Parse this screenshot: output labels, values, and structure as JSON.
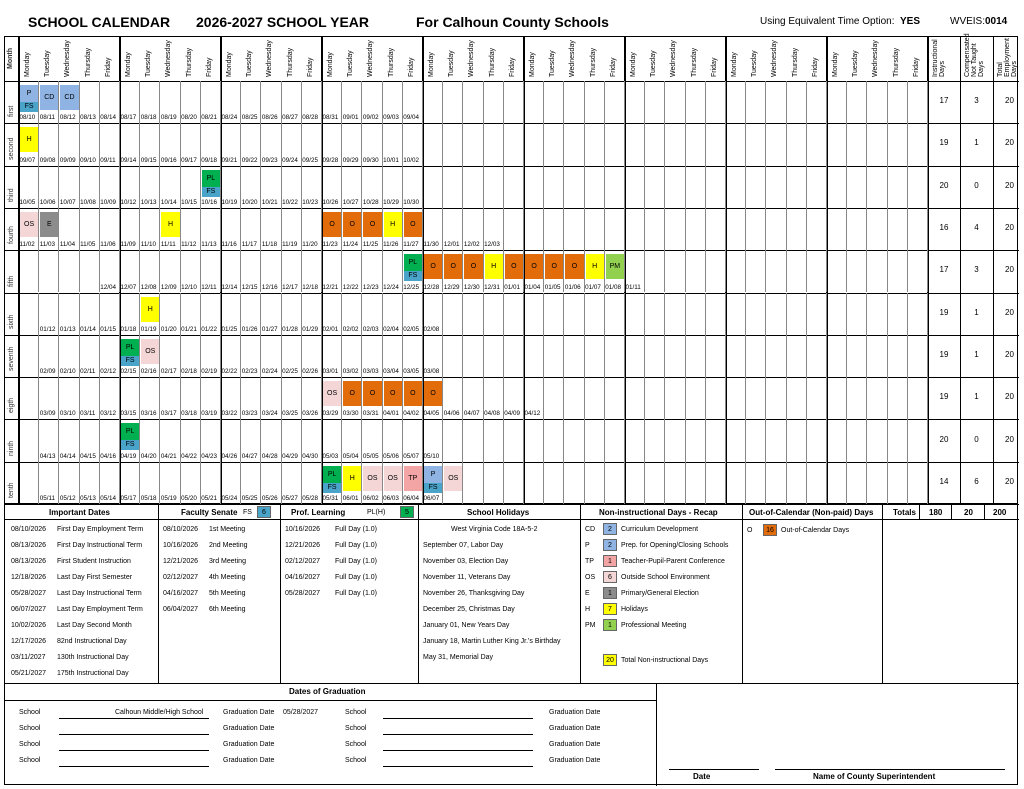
{
  "header": {
    "title": "SCHOOL CALENDAR",
    "year": "2026-2027 SCHOOL YEAR",
    "county": "For Calhoun County Schools",
    "option_label": "Using Equivalent Time Option:",
    "option_value": "YES",
    "wveis_label": "WVEIS:",
    "wveis_value": "0014"
  },
  "colors": {
    "CD": "#8fb4e3",
    "P": "#8fb4e3",
    "FS": "#4aa3c9",
    "TP": "#f3a4a4",
    "OS": "#f5d6d6",
    "E": "#8c8c8c",
    "H": "#ffff00",
    "PM": "#92d050",
    "PL": "#00b050",
    "O": "#e36c0a"
  },
  "grid": {
    "month_label": "Month",
    "days": [
      "Monday",
      "Tuesday",
      "Wednesday",
      "Thursday",
      "Friday"
    ],
    "weeks": 10,
    "totals_headers": [
      "Instructional Days",
      "Compensated Not Taught Days",
      "Total Employment Days"
    ],
    "months": [
      {
        "label": "first",
        "dates": [
          "08/10",
          "08/11",
          "08/12",
          "08/13",
          "08/14",
          "08/17",
          "08/18",
          "08/19",
          "08/20",
          "08/21",
          "08/24",
          "08/25",
          "08/26",
          "08/27",
          "08/28",
          "08/31",
          "09/01",
          "09/02",
          "09/03",
          "09/04"
        ],
        "start": 0,
        "codes": [
          {
            "i": 0,
            "c": "P"
          },
          {
            "i": 0,
            "c2": "FS"
          },
          {
            "i": 1,
            "c": "CD"
          },
          {
            "i": 2,
            "c": "CD"
          }
        ],
        "totals": [
          "17",
          "3",
          "20"
        ]
      },
      {
        "label": "second",
        "dates": [
          "09/07",
          "09/08",
          "09/09",
          "09/10",
          "09/11",
          "09/14",
          "09/15",
          "09/16",
          "09/17",
          "09/18",
          "09/21",
          "09/22",
          "09/23",
          "09/24",
          "09/25",
          "09/28",
          "09/29",
          "09/30",
          "10/01",
          "10/02"
        ],
        "start": 0,
        "codes": [
          {
            "i": 0,
            "c": "H"
          }
        ],
        "totals": [
          "19",
          "1",
          "20"
        ]
      },
      {
        "label": "third",
        "dates": [
          "10/05",
          "10/06",
          "10/07",
          "10/08",
          "10/09",
          "10/12",
          "10/13",
          "10/14",
          "10/15",
          "10/16",
          "10/19",
          "10/20",
          "10/21",
          "10/22",
          "10/23",
          "10/26",
          "10/27",
          "10/28",
          "10/29",
          "10/30"
        ],
        "start": 0,
        "codes": [
          {
            "i": 9,
            "c": "PL"
          },
          {
            "i": 9,
            "c2": "FS"
          }
        ],
        "totals": [
          "20",
          "0",
          "20"
        ]
      },
      {
        "label": "fourth",
        "dates": [
          "11/02",
          "11/03",
          "11/04",
          "11/05",
          "11/06",
          "11/09",
          "11/10",
          "11/11",
          "11/12",
          "11/13",
          "11/16",
          "11/17",
          "11/18",
          "11/19",
          "11/20",
          "11/23",
          "11/24",
          "11/25",
          "11/26",
          "11/27",
          "11/30",
          "12/01",
          "12/02",
          "12/03"
        ],
        "start": 0,
        "codes": [
          {
            "i": 0,
            "c": "OS"
          },
          {
            "i": 1,
            "c": "E"
          },
          {
            "i": 7,
            "c": "H"
          },
          {
            "i": 15,
            "c": "O"
          },
          {
            "i": 16,
            "c": "O"
          },
          {
            "i": 17,
            "c": "O"
          },
          {
            "i": 18,
            "c": "H"
          },
          {
            "i": 19,
            "c": "O"
          }
        ],
        "totals": [
          "16",
          "4",
          "20"
        ]
      },
      {
        "label": "fifth",
        "dates": [
          "12/04",
          "12/07",
          "12/08",
          "12/09",
          "12/10",
          "12/11",
          "12/14",
          "12/15",
          "12/16",
          "12/17",
          "12/18",
          "12/21",
          "12/22",
          "12/23",
          "12/24",
          "12/25",
          "12/28",
          "12/29",
          "12/30",
          "12/31",
          "01/01",
          "01/04",
          "01/05",
          "01/06",
          "01/07",
          "01/08",
          "01/11"
        ],
        "start": 4,
        "codes": [
          {
            "i": 15,
            "c": "PL"
          },
          {
            "i": 15,
            "c2": "FS"
          },
          {
            "i": 16,
            "c": "O"
          },
          {
            "i": 17,
            "c": "O"
          },
          {
            "i": 18,
            "c": "O"
          },
          {
            "i": 19,
            "c": "H"
          },
          {
            "i": 20,
            "c": "O"
          },
          {
            "i": 21,
            "c": "O"
          },
          {
            "i": 22,
            "c": "O"
          },
          {
            "i": 23,
            "c": "O"
          },
          {
            "i": 24,
            "c": "H"
          },
          {
            "i": 25,
            "c": "PM"
          }
        ],
        "totals": [
          "17",
          "3",
          "20"
        ]
      },
      {
        "label": "sixth",
        "dates": [
          "01/12",
          "01/13",
          "01/14",
          "01/15",
          "01/18",
          "01/19",
          "01/20",
          "01/21",
          "01/22",
          "01/25",
          "01/26",
          "01/27",
          "01/28",
          "01/29",
          "02/01",
          "02/02",
          "02/03",
          "02/04",
          "02/05",
          "02/08"
        ],
        "start": 1,
        "codes": [
          {
            "i": 5,
            "c": "H"
          }
        ],
        "totals": [
          "19",
          "1",
          "20"
        ]
      },
      {
        "label": "seventh",
        "dates": [
          "02/09",
          "02/10",
          "02/11",
          "02/12",
          "02/15",
          "02/16",
          "02/17",
          "02/18",
          "02/19",
          "02/22",
          "02/23",
          "02/24",
          "02/25",
          "02/26",
          "03/01",
          "03/02",
          "03/03",
          "03/04",
          "03/05",
          "03/08"
        ],
        "start": 1,
        "codes": [
          {
            "i": 4,
            "c": "PL"
          },
          {
            "i": 4,
            "c2": "FS"
          },
          {
            "i": 5,
            "c": "OS"
          }
        ],
        "totals": [
          "19",
          "1",
          "20"
        ]
      },
      {
        "label": "eigth",
        "dates": [
          "03/09",
          "03/10",
          "03/11",
          "03/12",
          "03/15",
          "03/16",
          "03/17",
          "03/18",
          "03/19",
          "03/22",
          "03/23",
          "03/24",
          "03/25",
          "03/26",
          "03/29",
          "03/30",
          "03/31",
          "04/01",
          "04/02",
          "04/05",
          "04/06",
          "04/07",
          "04/08",
          "04/09",
          "04/12"
        ],
        "start": 1,
        "codes": [
          {
            "i": 14,
            "c": "OS"
          },
          {
            "i": 15,
            "c": "O"
          },
          {
            "i": 16,
            "c": "O"
          },
          {
            "i": 17,
            "c": "O"
          },
          {
            "i": 18,
            "c": "O"
          },
          {
            "i": 19,
            "c": "O"
          }
        ],
        "totals": [
          "19",
          "1",
          "20"
        ]
      },
      {
        "label": "ninth",
        "dates": [
          "04/13",
          "04/14",
          "04/15",
          "04/16",
          "04/19",
          "04/20",
          "04/21",
          "04/22",
          "04/23",
          "04/26",
          "04/27",
          "04/28",
          "04/29",
          "04/30",
          "05/03",
          "05/04",
          "05/05",
          "05/06",
          "05/07",
          "05/10"
        ],
        "start": 1,
        "codes": [
          {
            "i": 4,
            "c": "PL"
          },
          {
            "i": 4,
            "c2": "FS"
          }
        ],
        "totals": [
          "20",
          "0",
          "20"
        ]
      },
      {
        "label": "tenth",
        "dates": [
          "05/11",
          "05/12",
          "05/13",
          "05/14",
          "05/17",
          "05/18",
          "05/19",
          "05/20",
          "05/21",
          "05/24",
          "05/25",
          "05/26",
          "05/27",
          "05/28",
          "05/31",
          "06/01",
          "06/02",
          "06/03",
          "06/04",
          "06/07"
        ],
        "start": 1,
        "codes": [
          {
            "i": 14,
            "c": "PL"
          },
          {
            "i": 14,
            "c2": "FS"
          },
          {
            "i": 15,
            "c": "H"
          },
          {
            "i": 16,
            "c": "OS"
          },
          {
            "i": 17,
            "c": "OS"
          },
          {
            "i": 18,
            "c": "TP"
          },
          {
            "i": 19,
            "c": "P"
          },
          {
            "i": 19,
            "c2": "FS"
          },
          {
            "i": 20,
            "c": "OS"
          }
        ],
        "totals": [
          "14",
          "6",
          "20"
        ]
      }
    ]
  },
  "important": {
    "title": "Important Dates",
    "rows": [
      [
        "08/10/2026",
        "First Day Employment Term"
      ],
      [
        "08/13/2026",
        "First Day Instructional Term"
      ],
      [
        "08/13/2026",
        "First Student Instruction"
      ],
      [
        "12/18/2026",
        "Last Day First Semester"
      ],
      [
        "05/28/2027",
        "Last Day Instructional Term"
      ],
      [
        "06/07/2027",
        "Last Day Employment Term"
      ],
      [
        "10/02/2026",
        "Last Day Second Month"
      ],
      [
        "12/17/2026",
        "82nd Instructional Day"
      ],
      [
        "03/11/2027",
        "130th Instructional Day"
      ],
      [
        "05/21/2027",
        "175th Instructional Day"
      ]
    ]
  },
  "senate": {
    "title": "Faculty Senate",
    "code": "FS",
    "count": "6",
    "rows": [
      [
        "08/10/2026",
        "1st Meeting"
      ],
      [
        "10/16/2026",
        "2nd Meeting"
      ],
      [
        "12/21/2026",
        "3rd Meeting"
      ],
      [
        "02/12/2027",
        "4th Meeting"
      ],
      [
        "04/16/2027",
        "5th Meeting"
      ],
      [
        "06/04/2027",
        "6th Meeting"
      ]
    ]
  },
  "proflearn": {
    "title": "Prof. Learning",
    "code": "PL(H)",
    "count": "5",
    "rows": [
      [
        "10/16/2026",
        "Full Day (1.0)"
      ],
      [
        "12/21/2026",
        "Full Day (1.0)"
      ],
      [
        "02/12/2027",
        "Full Day (1.0)"
      ],
      [
        "04/16/2027",
        "Full Day (1.0)"
      ],
      [
        "05/28/2027",
        "Full Day (1.0)"
      ]
    ]
  },
  "holidays": {
    "title": "School Holidays",
    "code_ref": "West Virginia Code 18A-5-2",
    "rows": [
      "September 07, Labor Day",
      "November 03, Election Day",
      "November 11, Veterans Day",
      "November 26, Thanksgiving Day",
      "December 25, Christmas Day",
      "January 01, New Years Day",
      "January 18, Martin Luther King Jr.'s Birthday",
      "May 31, Memorial Day"
    ]
  },
  "recap": {
    "title": "Non-instructional Days - Recap",
    "rows": [
      [
        "CD",
        "2",
        "Curriculum Development"
      ],
      [
        "P",
        "2",
        "Prep. for Opening/Closing Schools"
      ],
      [
        "TP",
        "1",
        "Teacher-Pupil-Parent Conference"
      ],
      [
        "OS",
        "6",
        "Outside School Environment"
      ],
      [
        "E",
        "1",
        "Primary/General Election"
      ],
      [
        "H",
        "7",
        "Holidays"
      ],
      [
        "PM",
        "1",
        "Professional Meeting"
      ]
    ],
    "total_count": "20",
    "total_label": "Total Non-instructional Days"
  },
  "outcal": {
    "title": "Out-of-Calendar (Non-paid) Days",
    "code": "O",
    "count": "16",
    "label": "Out-of-Calendar Days"
  },
  "totals": {
    "label": "Totals",
    "instructional": "180",
    "compensated": "20",
    "employment": "200"
  },
  "graduation": {
    "title": "Dates of Graduation",
    "school_label": "School",
    "grad_label": "Graduation Date",
    "left": [
      {
        "school": "Calhoun Middle/High School",
        "date": "05/28/2027"
      },
      {
        "school": "",
        "date": ""
      },
      {
        "school": "",
        "date": ""
      },
      {
        "school": "",
        "date": ""
      }
    ],
    "right": [
      {
        "school": "",
        "date": ""
      },
      {
        "school": "",
        "date": ""
      },
      {
        "school": "",
        "date": ""
      },
      {
        "school": "",
        "date": ""
      }
    ]
  },
  "signature": {
    "date_label": "Date",
    "name_label": "Name of County Superintendent"
  }
}
